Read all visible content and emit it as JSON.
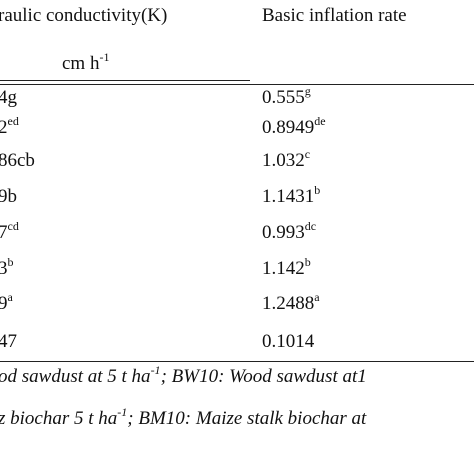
{
  "table": {
    "headers": {
      "col1": "raulic conductivity(K)",
      "col2": "Basic inflation rate"
    },
    "unit": {
      "base": "cm h",
      "sup": "-1"
    },
    "rows": [
      {
        "k": "4g",
        "k_sup": "",
        "rate": "0.555",
        "rate_sup": "g"
      },
      {
        "k": "2",
        "k_sup": "ed",
        "rate": "0.8949",
        "rate_sup": "de"
      },
      {
        "k": "86cb",
        "k_sup": "",
        "rate": "1.032",
        "rate_sup": "c"
      },
      {
        "k": "9b",
        "k_sup": "",
        "rate": "1.1431",
        "rate_sup": "b"
      },
      {
        "k": "7",
        "k_sup": "cd",
        "rate": "0.993",
        "rate_sup": "dc"
      },
      {
        "k": "3",
        "k_sup": "b",
        "rate": "1.142",
        "rate_sup": "b"
      },
      {
        "k": "9",
        "k_sup": "a",
        "rate": "1.2488",
        "rate_sup": "a"
      },
      {
        "k": "47",
        "k_sup": "",
        "rate": "0.1014",
        "rate_sup": ""
      }
    ]
  },
  "footnotes": {
    "line1_a": "od sawdust at 5 t ha",
    "line1_sup": "-1",
    "line1_b": "; BW10: Wood sawdust at1",
    "line2_a": "z biochar 5 t ha",
    "line2_sup": "-1",
    "line2_b": "; BM10: Maize stalk biochar at"
  }
}
